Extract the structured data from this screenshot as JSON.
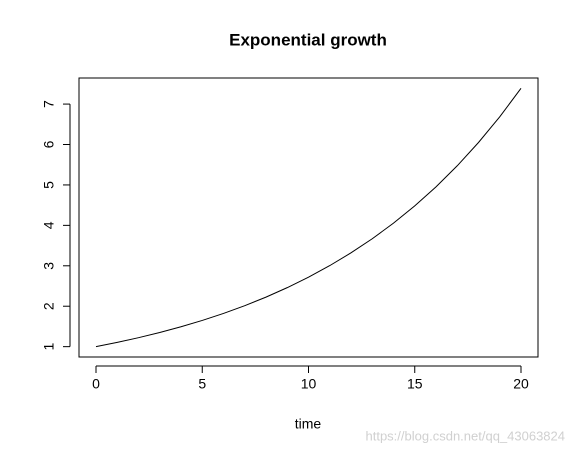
{
  "chart_data": {
    "type": "line",
    "title": "Exponential growth",
    "x_label": "time",
    "x": [
      0,
      1,
      2,
      3,
      4,
      5,
      6,
      7,
      8,
      9,
      10,
      11,
      12,
      13,
      14,
      15,
      16,
      17,
      18,
      19,
      20
    ],
    "series": [
      {
        "color": "#000000",
        "values": [
          1,
          1.1052,
          1.2214,
          1.3499,
          1.4918,
          1.6487,
          1.8221,
          2.0138,
          2.2255,
          2.4596,
          2.7183,
          3.0042,
          3.3201,
          3.6693,
          4.0552,
          4.4817,
          4.953,
          5.4739,
          6.0496,
          6.6859,
          7.3891
        ]
      }
    ],
    "xlim": [
      -0.8,
      20.8
    ],
    "xticks": [
      0,
      5,
      10,
      15,
      20
    ],
    "ylim": [
      0.744,
      7.645
    ],
    "yticks": [
      1,
      2,
      3,
      4,
      5,
      6,
      7
    ]
  },
  "watermark": "https://blog.csdn.net/qq_43063824"
}
